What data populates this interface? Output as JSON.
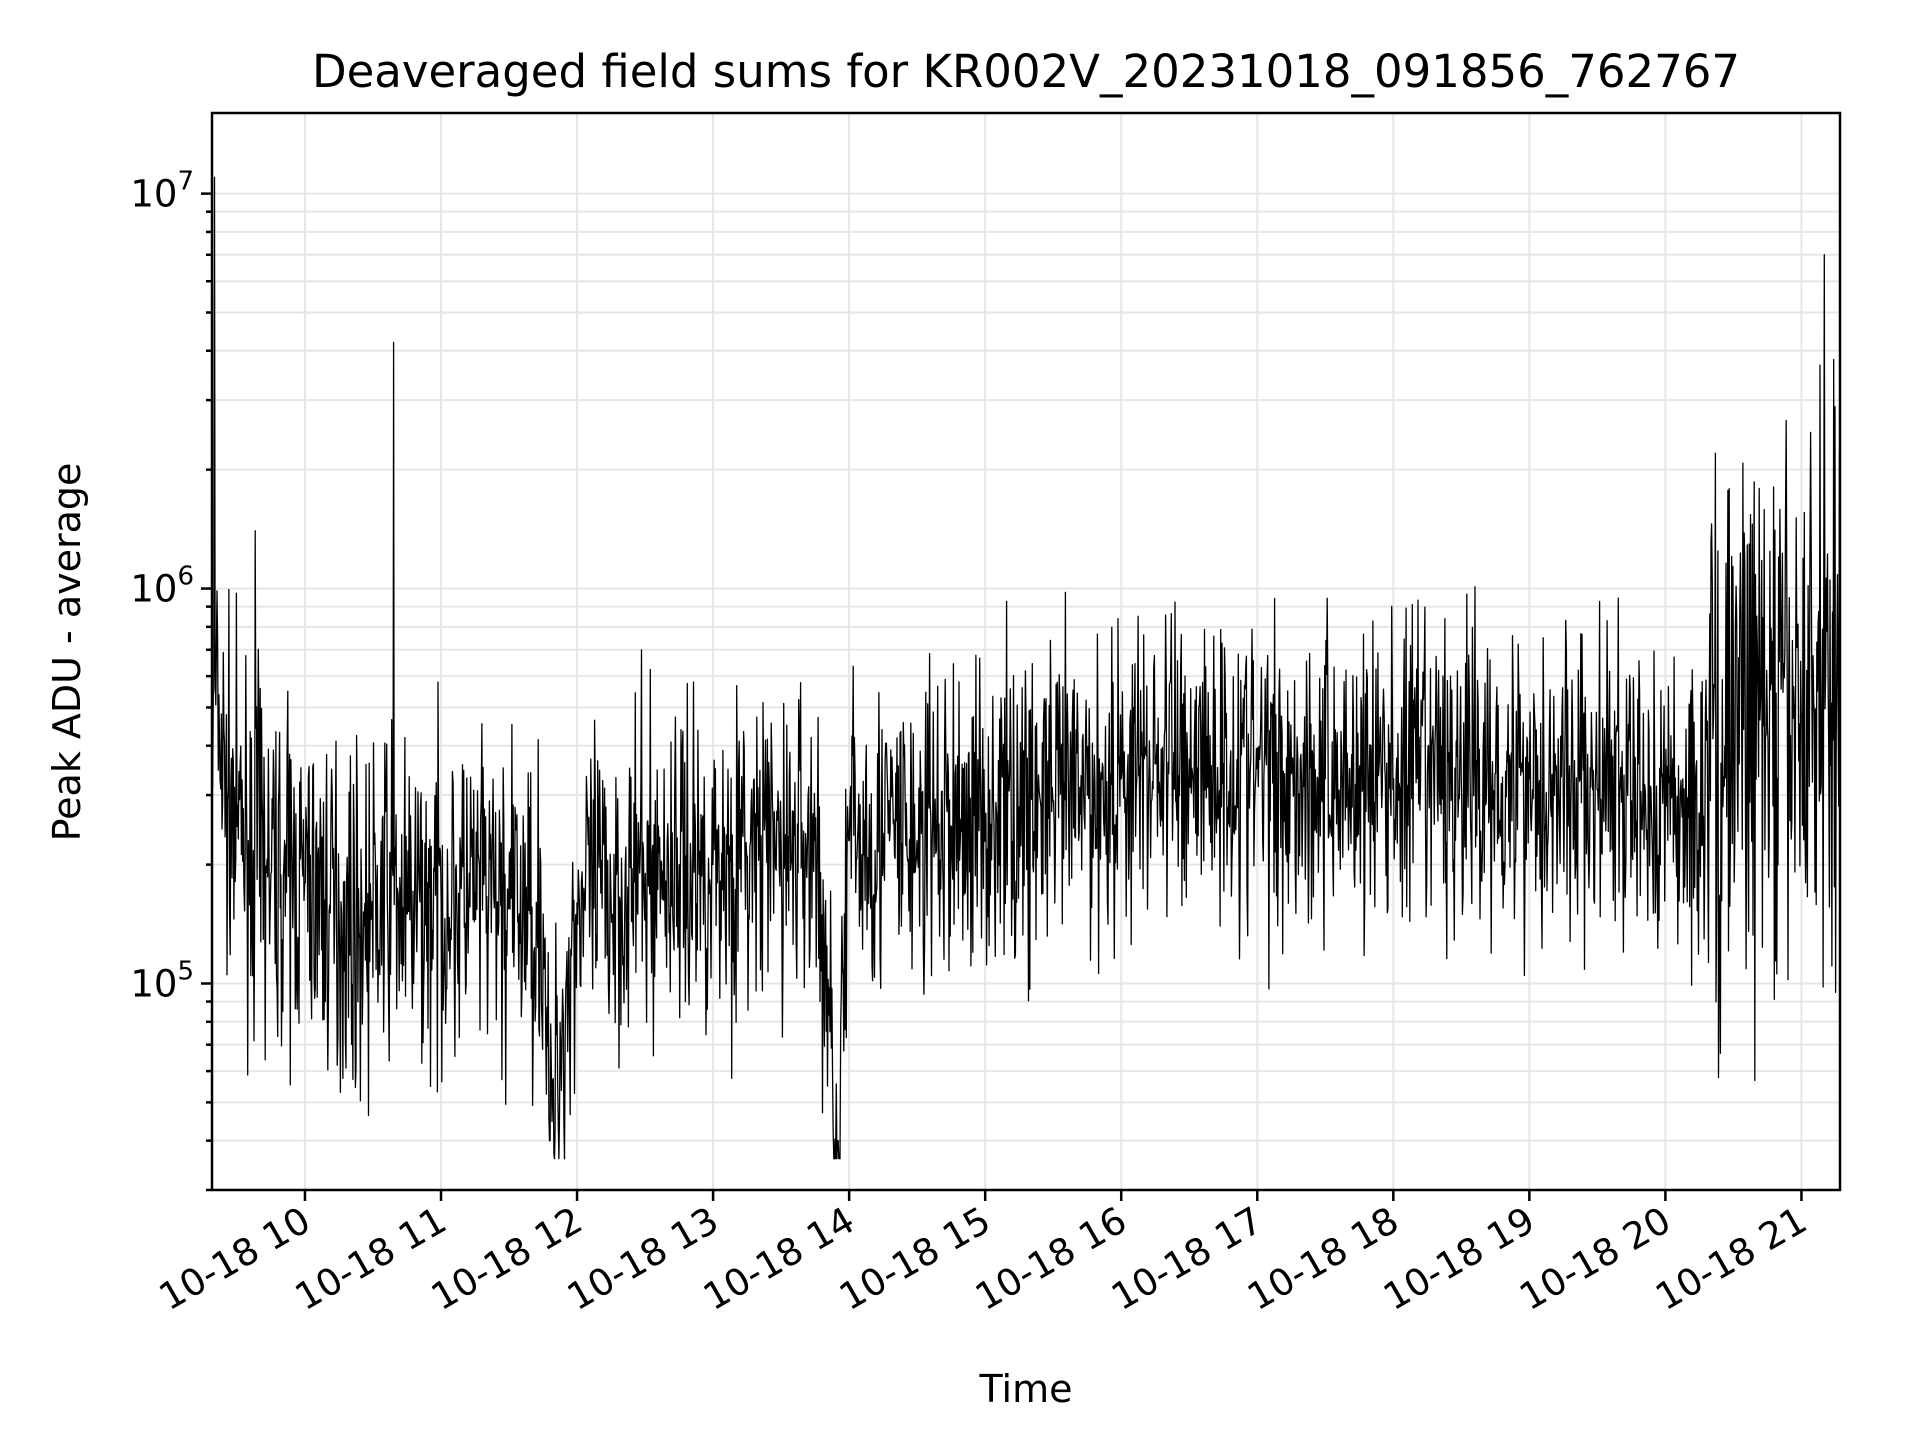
{
  "chart_data": {
    "type": "line",
    "title": "Deaveraged field sums for KR002V_20231018_091856_762767",
    "xlabel": "Time",
    "ylabel": "Peak ADU - average",
    "yscale": "log",
    "ylim": [
      30000,
      16000000
    ],
    "xlim": [
      "2023-10-18 09:19",
      "2023-10-18 21:17"
    ],
    "x_ticks": [
      {
        "value": "2023-10-18 10:00",
        "label": "10-18 10"
      },
      {
        "value": "2023-10-18 11:00",
        "label": "10-18 11"
      },
      {
        "value": "2023-10-18 12:00",
        "label": "10-18 12"
      },
      {
        "value": "2023-10-18 13:00",
        "label": "10-18 13"
      },
      {
        "value": "2023-10-18 14:00",
        "label": "10-18 14"
      },
      {
        "value": "2023-10-18 15:00",
        "label": "10-18 15"
      },
      {
        "value": "2023-10-18 16:00",
        "label": "10-18 16"
      },
      {
        "value": "2023-10-18 17:00",
        "label": "10-18 17"
      },
      {
        "value": "2023-10-18 18:00",
        "label": "10-18 18"
      },
      {
        "value": "2023-10-18 19:00",
        "label": "10-18 19"
      },
      {
        "value": "2023-10-18 20:00",
        "label": "10-18 20"
      },
      {
        "value": "2023-10-18 21:00",
        "label": "10-18 21"
      }
    ],
    "y_ticks": [
      {
        "value": 100000,
        "base": "10",
        "exp": "5"
      },
      {
        "value": 1000000,
        "base": "10",
        "exp": "6"
      },
      {
        "value": 10000000,
        "base": "10",
        "exp": "7"
      }
    ],
    "grid": true,
    "legend": "none",
    "line_color": "#000000",
    "series": [
      {
        "x": [
          "2023-10-18 09:19",
          "2023-10-18 09:20",
          "2023-10-18 09:25",
          "2023-10-18 09:30",
          "2023-10-18 09:35",
          "2023-10-18 09:38",
          "2023-10-18 09:45",
          "2023-10-18 10:00",
          "2023-10-18 10:15",
          "2023-10-18 10:26",
          "2023-10-18 10:38",
          "2023-10-18 10:39",
          "2023-10-18 10:45",
          "2023-10-18 11:00",
          "2023-10-18 11:15",
          "2023-10-18 11:30",
          "2023-10-18 11:45",
          "2023-10-18 11:48",
          "2023-10-18 12:00",
          "2023-10-18 12:15",
          "2023-10-18 12:30",
          "2023-10-18 12:45",
          "2023-10-18 13:00",
          "2023-10-18 13:15",
          "2023-10-18 13:30",
          "2023-10-18 13:45",
          "2023-10-18 13:55",
          "2023-10-18 14:00",
          "2023-10-18 14:15",
          "2023-10-18 14:30",
          "2023-10-18 14:45",
          "2023-10-18 15:00",
          "2023-10-18 15:15",
          "2023-10-18 15:30",
          "2023-10-18 15:45",
          "2023-10-18 16:00",
          "2023-10-18 16:15",
          "2023-10-18 16:30",
          "2023-10-18 16:45",
          "2023-10-18 17:00",
          "2023-10-18 17:15",
          "2023-10-18 17:30",
          "2023-10-18 17:45",
          "2023-10-18 18:00",
          "2023-10-18 18:15",
          "2023-10-18 18:30",
          "2023-10-18 18:45",
          "2023-10-18 19:00",
          "2023-10-18 19:15",
          "2023-10-18 19:30",
          "2023-10-18 19:45",
          "2023-10-18 20:00",
          "2023-10-18 20:15",
          "2023-10-18 20:22",
          "2023-10-18 20:30",
          "2023-10-18 20:45",
          "2023-10-18 21:00",
          "2023-10-18 21:07",
          "2023-10-18 21:10",
          "2023-10-18 21:17"
        ],
        "values": [
          600000,
          11000000,
          300000,
          250000,
          230000,
          1400000,
          190000,
          180000,
          150000,
          140000,
          170000,
          4200000,
          150000,
          160000,
          170000,
          155000,
          150000,
          40000,
          160000,
          170000,
          190000,
          200000,
          200000,
          210000,
          220000,
          230000,
          40000,
          230000,
          240000,
          230000,
          250000,
          270000,
          280000,
          290000,
          300000,
          330000,
          360000,
          370000,
          360000,
          350000,
          340000,
          330000,
          340000,
          330000,
          340000,
          335000,
          340000,
          330000,
          320000,
          310000,
          290000,
          280000,
          270000,
          2200000,
          500000,
          450000,
          480000,
          550000,
          7000000,
          650000
        ]
      }
    ]
  }
}
